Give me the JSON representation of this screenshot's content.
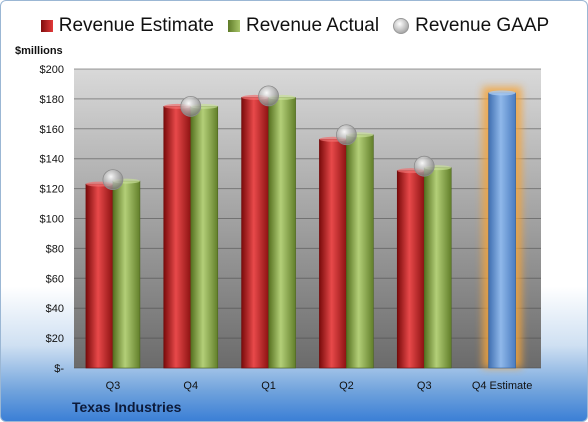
{
  "legend": {
    "estimate": "Revenue Estimate",
    "actual": "Revenue Actual",
    "gaap": "Revenue GAAP"
  },
  "units_label": "$millions",
  "company": "Texas Industries",
  "colors": {
    "estimate": "#c8282a",
    "actual": "#8fae4f",
    "gaap": "#b0b0b0",
    "forecast": "#6f9fd8",
    "forecast_glow": "#f5a43a"
  },
  "chart_data": {
    "type": "bar",
    "categories": [
      "Q3",
      "Q4",
      "Q1",
      "Q2",
      "Q3",
      "Q4 Estimate"
    ],
    "series": [
      {
        "name": "Revenue Estimate",
        "values": [
          123,
          175,
          181,
          153,
          132,
          184
        ]
      },
      {
        "name": "Revenue Actual",
        "values": [
          125,
          175,
          181,
          156,
          134,
          null
        ]
      },
      {
        "name": "Revenue GAAP",
        "values": [
          126,
          175,
          182,
          156,
          135,
          null
        ]
      }
    ],
    "ylim": [
      0,
      200
    ],
    "yticks": [
      "$-",
      "$20",
      "$40",
      "$60",
      "$80",
      "$100",
      "$120",
      "$140",
      "$160",
      "$180",
      "$200"
    ],
    "ylabel": "$millions",
    "grid": true,
    "legend_position": "top"
  }
}
